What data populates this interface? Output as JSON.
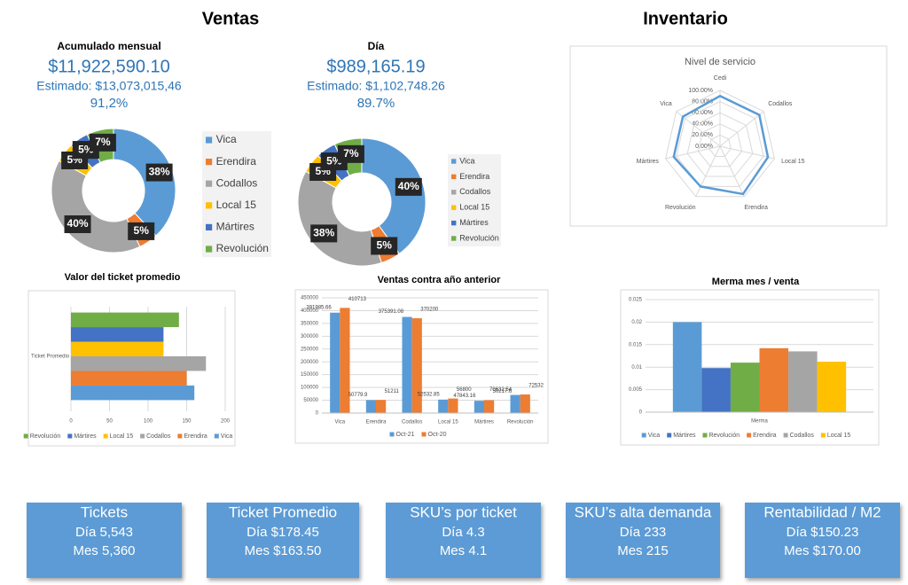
{
  "headers": {
    "left": "Ventas",
    "right": "Inventario"
  },
  "chart_data": [
    {
      "type": "donut",
      "title": "Acumulado mensual",
      "total": "$11,922,590.10",
      "estimate": "Estimado: $13,073,015,46",
      "percent": "91,2%",
      "categories": [
        "Vica",
        "Erendira",
        "Codallos",
        "Local 15",
        "Mártires",
        "Revolución"
      ],
      "values": [
        38,
        5,
        40,
        5,
        5,
        7
      ],
      "value_labels": [
        "38%",
        "5%",
        "40%",
        "5%",
        "5%",
        "7%"
      ],
      "colors": [
        "#5b9bd5",
        "#ed7d31",
        "#a5a5a5",
        "#ffc000",
        "#4472c4",
        "#70ad47"
      ]
    },
    {
      "type": "donut",
      "title": "Día",
      "total": "$989,165.19",
      "estimate": "Estimado: $1,102,748.26",
      "percent": "89.7%",
      "categories": [
        "Vica",
        "Erendira",
        "Codallos",
        "Local 15",
        "Mártires",
        "Revolución"
      ],
      "values": [
        40,
        5,
        38,
        5,
        5,
        7
      ],
      "value_labels": [
        "40%",
        "5%",
        "38%",
        "5%",
        "5%",
        "7%"
      ],
      "colors": [
        "#5b9bd5",
        "#ed7d31",
        "#a5a5a5",
        "#ffc000",
        "#4472c4",
        "#70ad47"
      ]
    },
    {
      "type": "radar",
      "title": "Nivel de servicio",
      "categories": [
        "Cedi",
        "Codallos",
        "Local 15",
        "Erendira",
        "Revolución",
        "Mártires",
        "Vica"
      ],
      "values": [
        90,
        90,
        88,
        95,
        80,
        85,
        85
      ],
      "color": "#5b9bd5",
      "ylim": [
        0,
        100
      ],
      "yticks": [
        {
          "value": 0,
          "label": "0.00%"
        },
        {
          "value": 20,
          "label": "20.00%"
        },
        {
          "value": 40,
          "label": "40.00%"
        },
        {
          "value": 60,
          "label": "60.00%"
        },
        {
          "value": 80,
          "label": "80.00%"
        },
        {
          "value": 100,
          "label": "100.00%"
        }
      ]
    },
    {
      "type": "hbar",
      "title": "Valor del ticket promedio",
      "categories": [
        "Ticket Promedio"
      ],
      "series": [
        {
          "name": "Vica",
          "color": "#5b9bd5",
          "values": [
            160
          ]
        },
        {
          "name": "Erendira",
          "color": "#ed7d31",
          "values": [
            150
          ]
        },
        {
          "name": "Codallos",
          "color": "#a5a5a5",
          "values": [
            175
          ]
        },
        {
          "name": "Local 15",
          "color": "#ffc000",
          "values": [
            120
          ]
        },
        {
          "name": "Mártires",
          "color": "#4472c4",
          "values": [
            120
          ]
        },
        {
          "name": "Revolución",
          "color": "#70ad47",
          "values": [
            140
          ]
        }
      ],
      "xlim": [
        0,
        200
      ],
      "xticks": [
        0,
        50,
        100,
        150,
        200
      ],
      "grid": true
    },
    {
      "type": "bar",
      "title": "Ventas contra año anterior",
      "categories": [
        "Vica",
        "Erendira",
        "Codallos",
        "Local 15",
        "Mártires",
        "Revolución"
      ],
      "series": [
        {
          "name": "Oct-21",
          "color": "#5b9bd5",
          "values": [
            391985.66,
            50779.9,
            375391.08,
            52532.85,
            47843.16,
            70632.54
          ]
        },
        {
          "name": "Oct-20",
          "color": "#ed7d31",
          "values": [
            410713,
            51211,
            370200,
            56800,
            50217.6,
            72532
          ]
        }
      ],
      "ylim": [
        0,
        450000
      ],
      "yticks": [
        0,
        50000,
        100000,
        150000,
        200000,
        250000,
        300000,
        350000,
        400000,
        450000
      ],
      "grid": true,
      "data_labels": true
    },
    {
      "type": "bar",
      "title": "Merma mes / venta",
      "categories": [
        "Merma"
      ],
      "series": [
        {
          "name": "Vica",
          "color": "#5b9bd5",
          "values": [
            0.02
          ]
        },
        {
          "name": "Mártires",
          "color": "#4472c4",
          "values": [
            0.0098
          ]
        },
        {
          "name": "Revolución",
          "color": "#70ad47",
          "values": [
            0.011
          ]
        },
        {
          "name": "Erendira",
          "color": "#ed7d31",
          "values": [
            0.0142
          ]
        },
        {
          "name": "Codallos",
          "color": "#a5a5a5",
          "values": [
            0.0135
          ]
        },
        {
          "name": "Local 15",
          "color": "#ffc000",
          "values": [
            0.0112
          ]
        }
      ],
      "ylim": [
        0,
        0.025
      ],
      "yticks": [
        0,
        0.005,
        0.01,
        0.015,
        0.02,
        0.025
      ],
      "grid": true,
      "data_labels": false
    }
  ],
  "kpi_cards": [
    {
      "title": "Tickets",
      "lines": [
        "Día 5,543",
        "Mes 5,360"
      ]
    },
    {
      "title": "Ticket Promedio",
      "lines": [
        "Día $178.45",
        "Mes $163.50"
      ]
    },
    {
      "title": "SKU’s por ticket",
      "lines": [
        "Día 4.3",
        "Mes 4.1"
      ]
    },
    {
      "title": "SKU’s  alta demanda",
      "lines": [
        "Día 233",
        "Mes 215"
      ]
    },
    {
      "title": "Rentabilidad / M2",
      "lines": [
        "Día $150.23",
        "Mes $170.00"
      ]
    }
  ]
}
